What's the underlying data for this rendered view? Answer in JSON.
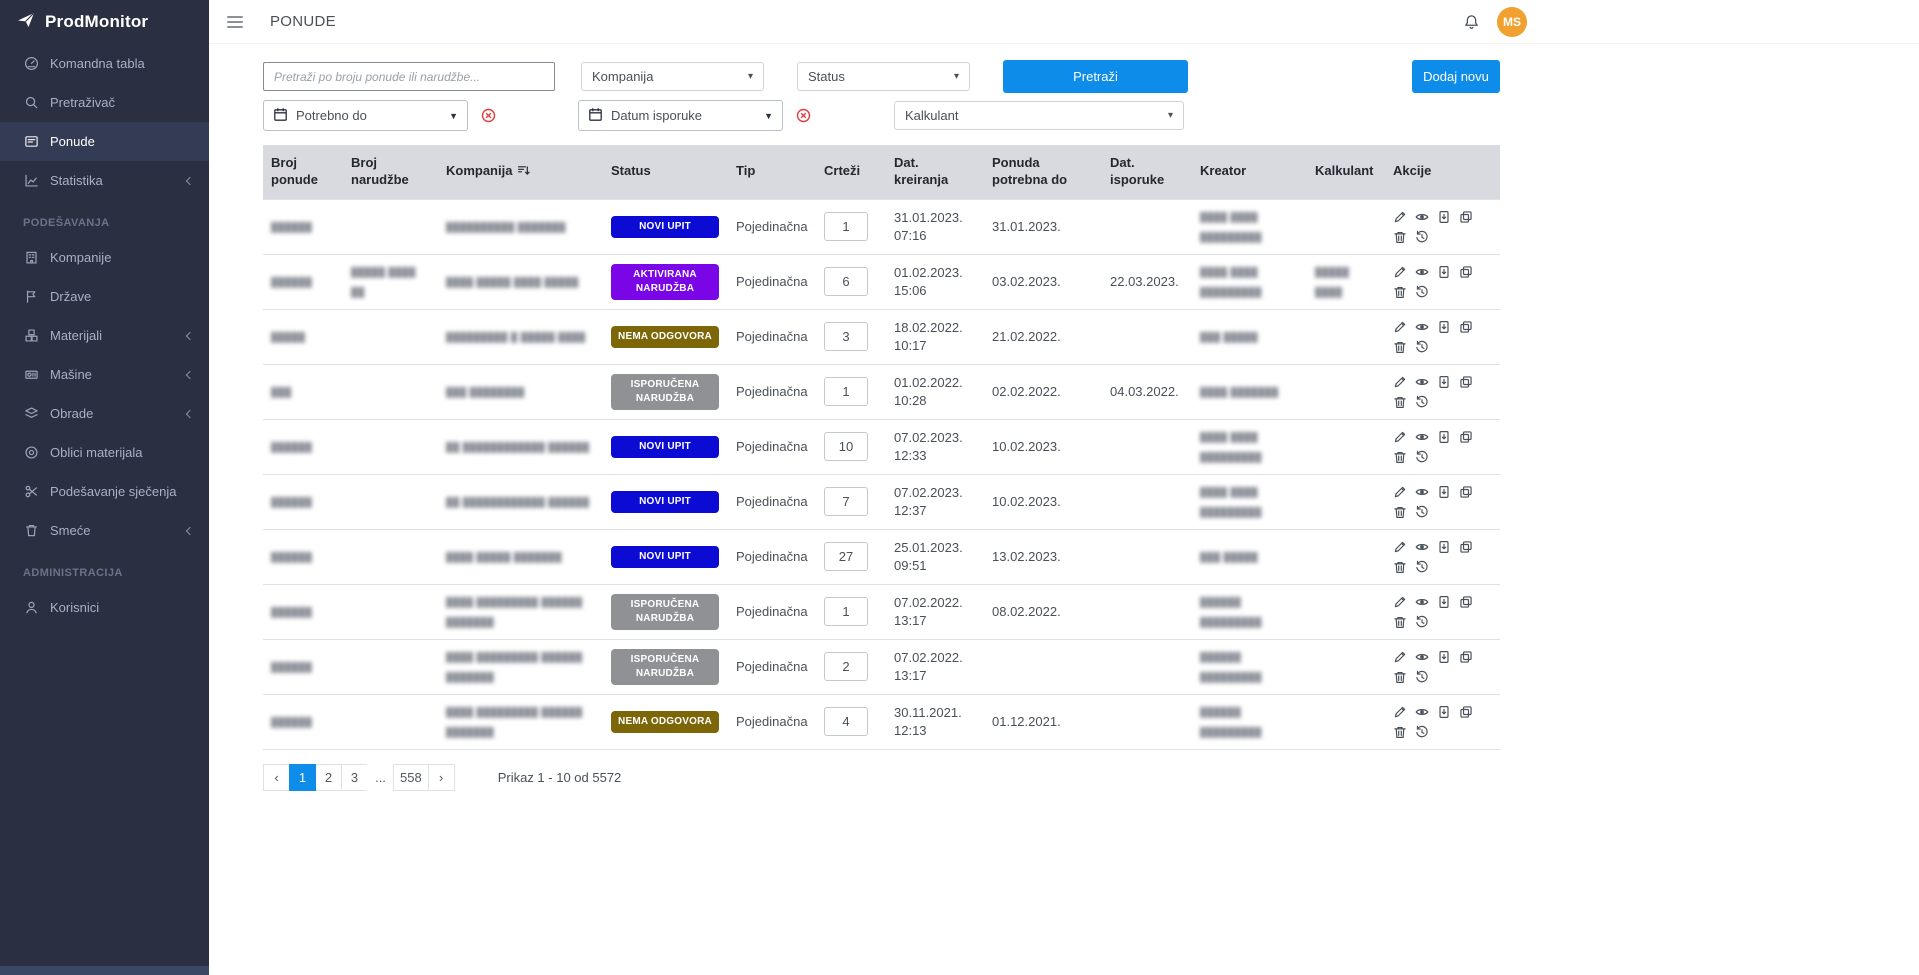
{
  "app": {
    "name": "ProdMonitor"
  },
  "topbar": {
    "title": "PONUDE",
    "avatar_initials": "MS"
  },
  "colors": {
    "accent": "#0d8de9",
    "sidebar_bg": "#2a3042",
    "avatar_bg": "#f0a12f",
    "table_header_bg": "#d9dae0",
    "danger": "#e23c3c"
  },
  "status_colors": {
    "NOVI UPIT": "#0b0bd4",
    "AKTIVIRANA NARUDŽBA": "#7a05e6",
    "NEMA ODGOVORA": "#7d6608",
    "ISPORUČENA NARUDŽBA": "#909194"
  },
  "sidebar": {
    "items": [
      {
        "label": "Komandna tabla",
        "icon": "dashboard"
      },
      {
        "label": "Pretraživač",
        "icon": "search"
      },
      {
        "label": "Ponude",
        "icon": "offers",
        "active": true
      },
      {
        "label": "Statistika",
        "icon": "stats",
        "chevron": true
      },
      {
        "section": "PODEŠAVANJA"
      },
      {
        "label": "Kompanije",
        "icon": "companies"
      },
      {
        "label": "Države",
        "icon": "flag"
      },
      {
        "label": "Materijali",
        "icon": "materials",
        "chevron": true
      },
      {
        "label": "Mašine",
        "icon": "machines",
        "chevron": true
      },
      {
        "label": "Obrade",
        "icon": "processes",
        "chevron": true
      },
      {
        "label": "Oblici materijala",
        "icon": "shapes"
      },
      {
        "label": "Podešavanje sječenja",
        "icon": "cutting"
      },
      {
        "label": "Smeće",
        "icon": "trash",
        "chevron": true
      },
      {
        "section": "ADMINISTRACIJA"
      },
      {
        "label": "Korisnici",
        "icon": "users"
      }
    ]
  },
  "filters": {
    "search_placeholder": "Pretraži po broju ponude ili narudžbe...",
    "kompanija_label": "Kompanija",
    "status_label": "Status",
    "search_button": "Pretraži",
    "add_button": "Dodaj novu",
    "potrebno_do_label": "Potrebno do",
    "datum_isporuke_label": "Datum isporuke",
    "kalkulant_label": "Kalkulant"
  },
  "table": {
    "columns": [
      "Broj ponude",
      "Broj narudžbe",
      "Kompanija",
      "Status",
      "Tip",
      "Crteži",
      "Dat. kreiranja",
      "Ponuda potrebna do",
      "Dat. isporuke",
      "Kreator",
      "Kalkulant",
      "Akcije"
    ],
    "rows": [
      {
        "broj_ponude": "██████",
        "broj_narudzbe": "",
        "kompanija": "██████████ ███████",
        "status": "NOVI UPIT",
        "tip": "Pojedinačna",
        "crtezi": "1",
        "dat_kreiranja": "31.01.2023.\n07:16",
        "ponuda_potrebna_do": "31.01.2023.",
        "dat_isporuke": "",
        "kreator": "████ ████\n█████████",
        "kalkulant": ""
      },
      {
        "broj_ponude": "██████",
        "broj_narudzbe": "█████ ████\n██",
        "kompanija": "████ █████ ████ █████",
        "status": "AKTIVIRANA NARUDŽBA",
        "tip": "Pojedinačna",
        "crtezi": "6",
        "dat_kreiranja": "01.02.2023.\n15:06",
        "ponuda_potrebna_do": "03.02.2023.",
        "dat_isporuke": "22.03.2023.",
        "kreator": "████ ████\n█████████",
        "kalkulant": "█████\n████"
      },
      {
        "broj_ponude": "█████",
        "broj_narudzbe": "",
        "kompanija": "█████████ █ █████ ████",
        "status": "NEMA ODGOVORA",
        "tip": "Pojedinačna",
        "crtezi": "3",
        "dat_kreiranja": "18.02.2022.\n10:17",
        "ponuda_potrebna_do": "21.02.2022.",
        "dat_isporuke": "",
        "kreator": "███ █████",
        "kalkulant": ""
      },
      {
        "broj_ponude": "███",
        "broj_narudzbe": "",
        "kompanija": "███ ████████",
        "status": "ISPORUČENA NARUDŽBA",
        "tip": "Pojedinačna",
        "crtezi": "1",
        "dat_kreiranja": "01.02.2022.\n10:28",
        "ponuda_potrebna_do": "02.02.2022.",
        "dat_isporuke": "04.03.2022.",
        "kreator": "████ ███████",
        "kalkulant": ""
      },
      {
        "broj_ponude": "██████",
        "broj_narudzbe": "",
        "kompanija": "██ ████████████ ██████",
        "status": "NOVI UPIT",
        "tip": "Pojedinačna",
        "crtezi": "10",
        "dat_kreiranja": "07.02.2023.\n12:33",
        "ponuda_potrebna_do": "10.02.2023.",
        "dat_isporuke": "",
        "kreator": "████ ████\n█████████",
        "kalkulant": ""
      },
      {
        "broj_ponude": "██████",
        "broj_narudzbe": "",
        "kompanija": "██ ████████████ ██████",
        "status": "NOVI UPIT",
        "tip": "Pojedinačna",
        "crtezi": "7",
        "dat_kreiranja": "07.02.2023.\n12:37",
        "ponuda_potrebna_do": "10.02.2023.",
        "dat_isporuke": "",
        "kreator": "████ ████\n█████████",
        "kalkulant": ""
      },
      {
        "broj_ponude": "██████",
        "broj_narudzbe": "",
        "kompanija": "████ █████ ███████",
        "status": "NOVI UPIT",
        "tip": "Pojedinačna",
        "crtezi": "27",
        "dat_kreiranja": "25.01.2023.\n09:51",
        "ponuda_potrebna_do": "13.02.2023.",
        "dat_isporuke": "",
        "kreator": "███ █████",
        "kalkulant": ""
      },
      {
        "broj_ponude": "██████",
        "broj_narudzbe": "",
        "kompanija": "████ █████████ ██████\n███████",
        "status": "ISPORUČENA NARUDŽBA",
        "tip": "Pojedinačna",
        "crtezi": "1",
        "dat_kreiranja": "07.02.2022.\n13:17",
        "ponuda_potrebna_do": "08.02.2022.",
        "dat_isporuke": "",
        "kreator": "██████ █████████",
        "kalkulant": ""
      },
      {
        "broj_ponude": "██████",
        "broj_narudzbe": "",
        "kompanija": "████ █████████ ██████\n███████",
        "status": "ISPORUČENA NARUDŽBA",
        "tip": "Pojedinačna",
        "crtezi": "2",
        "dat_kreiranja": "07.02.2022.\n13:17",
        "ponuda_potrebna_do": "",
        "dat_isporuke": "",
        "kreator": "██████ █████████",
        "kalkulant": ""
      },
      {
        "broj_ponude": "██████",
        "broj_narudzbe": "",
        "kompanija": "████ █████████ ██████\n███████",
        "status": "NEMA ODGOVORA",
        "tip": "Pojedinačna",
        "crtezi": "4",
        "dat_kreiranja": "30.11.2021.\n12:13",
        "ponuda_potrebna_do": "01.12.2021.",
        "dat_isporuke": "",
        "kreator": "██████ █████████",
        "kalkulant": ""
      }
    ]
  },
  "pagination": {
    "items": [
      {
        "label": "‹",
        "name": "prev"
      },
      {
        "label": "1",
        "active": true
      },
      {
        "label": "2"
      },
      {
        "label": "3"
      },
      {
        "label": "...",
        "ellipsis": true
      },
      {
        "label": "558"
      },
      {
        "label": "›",
        "name": "next"
      }
    ],
    "summary": "Prikaz 1 - 10 od 5572"
  }
}
